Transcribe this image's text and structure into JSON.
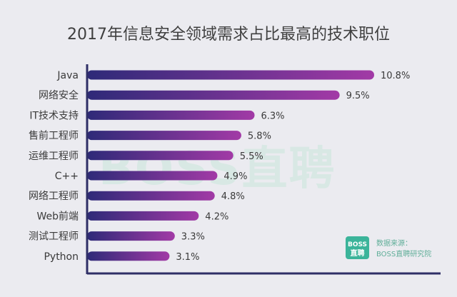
{
  "chart_data": {
    "type": "bar",
    "orientation": "horizontal",
    "title": "2017年信息安全领域需求占比最高的技术职位",
    "categories": [
      "Java",
      "网络安全",
      "IT技术支持",
      "售前工程师",
      "运维工程师",
      "C++",
      "网络工程师",
      "Web前端",
      "测试工程师",
      "Python"
    ],
    "values": [
      10.8,
      9.5,
      6.3,
      5.8,
      5.5,
      4.9,
      4.8,
      4.2,
      3.3,
      3.1
    ],
    "value_labels": [
      "10.8%",
      "9.5%",
      "6.3%",
      "5.8%",
      "5.5%",
      "4.9%",
      "4.8%",
      "4.2%",
      "3.3%",
      "3.1%"
    ],
    "unit": "%",
    "xlim": [
      0,
      10.8
    ],
    "xlabel": "",
    "ylabel": "",
    "grid": false,
    "colors": {
      "bar_start": "#2e2a78",
      "bar_end": "#a23aa6",
      "axis": "#2f2f66",
      "background": "#ebebf0"
    }
  },
  "watermark": {
    "text": "BOSS直聘"
  },
  "source": {
    "label": "数据来源：",
    "name": "BOSS直聘研究院",
    "logo_top": "BOSS",
    "logo_bottom": "直聘",
    "logo_color": "#3bb49a"
  }
}
